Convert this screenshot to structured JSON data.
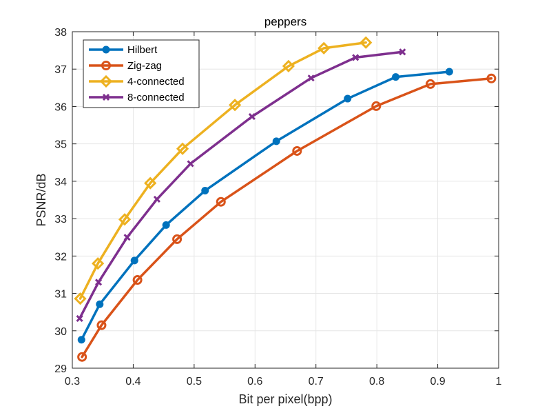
{
  "chart_data": {
    "type": "line",
    "title": "peppers",
    "xlabel": "Bit per pixel(bpp)",
    "ylabel": "PSNR/dB",
    "xlim": [
      0.3,
      1.0
    ],
    "ylim": [
      29,
      38
    ],
    "xticks": [
      0.3,
      0.4,
      0.5,
      0.6,
      0.7,
      0.8,
      0.9,
      1.0
    ],
    "xtick_labels": [
      "0.3",
      "0.4",
      "0.5",
      "0.6",
      "0.7",
      "0.8",
      "0.9",
      "1"
    ],
    "yticks": [
      29,
      30,
      31,
      32,
      33,
      34,
      35,
      36,
      37,
      38
    ],
    "ytick_labels": [
      "29",
      "30",
      "31",
      "32",
      "33",
      "34",
      "35",
      "36",
      "37",
      "38"
    ],
    "grid": true,
    "legend_position": "top-left",
    "series": [
      {
        "name": "Hilbert",
        "color": "#0072BD",
        "marker": "circle-filled",
        "x": [
          0.315,
          0.345,
          0.402,
          0.454,
          0.518,
          0.635,
          0.752,
          0.831,
          0.919
        ],
        "y": [
          29.76,
          30.71,
          31.88,
          32.83,
          33.75,
          35.07,
          36.21,
          36.79,
          36.93
        ]
      },
      {
        "name": "Zig-zag",
        "color": "#D95319",
        "marker": "circle-open",
        "x": [
          0.316,
          0.348,
          0.407,
          0.472,
          0.544,
          0.669,
          0.799,
          0.888,
          0.988
        ],
        "y": [
          29.3,
          30.15,
          31.36,
          32.45,
          33.45,
          34.81,
          36.01,
          36.6,
          36.75
        ]
      },
      {
        "name": "4-connected",
        "color": "#EDB120",
        "marker": "diamond-open",
        "x": [
          0.313,
          0.342,
          0.386,
          0.428,
          0.481,
          0.567,
          0.655,
          0.713,
          0.782
        ],
        "y": [
          30.86,
          31.8,
          32.98,
          33.95,
          34.87,
          36.04,
          37.08,
          37.56,
          37.71
        ]
      },
      {
        "name": "8-connected",
        "color": "#7E2F8E",
        "marker": "x",
        "x": [
          0.312,
          0.343,
          0.39,
          0.439,
          0.494,
          0.595,
          0.692,
          0.765,
          0.842
        ],
        "y": [
          30.33,
          31.3,
          32.5,
          33.52,
          34.47,
          35.73,
          36.76,
          37.31,
          37.46
        ]
      }
    ]
  }
}
